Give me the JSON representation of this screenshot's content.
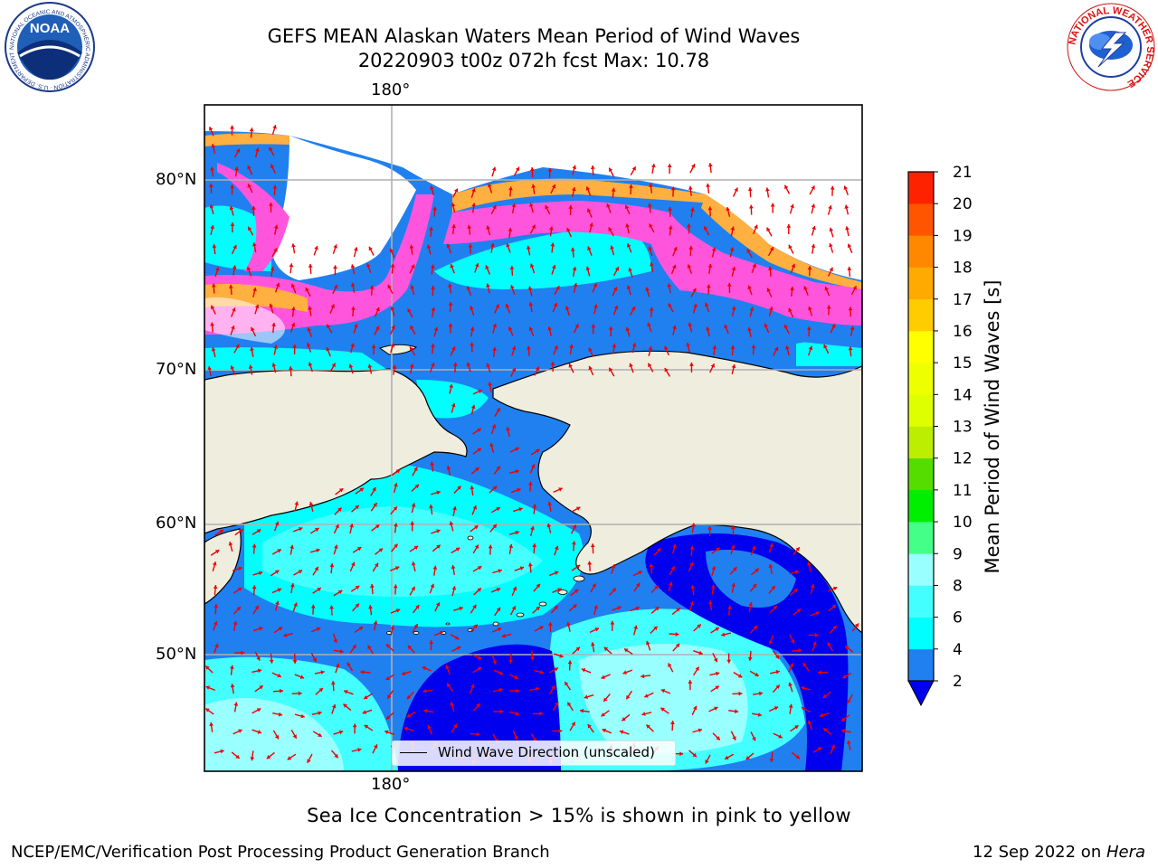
{
  "title": {
    "line1": "GEFS MEAN Alaskan Waters Mean Period of Wind Waves",
    "line2": "20220903 t00z 072h fcst   Max: 10.78"
  },
  "map": {
    "top_label": "180°",
    "bottom_label": "180°",
    "lat_labels": [
      "80°N",
      "70°N",
      "60°N",
      "50°N"
    ],
    "legend_text": "Wind Wave Direction (unscaled)",
    "colors": {
      "land": "#efedde",
      "ocean_2_4": "#2080f0",
      "ocean_deep": "#0000ee",
      "ocean_4_6": "#00ffff",
      "ocean_6_8": "#44ffff",
      "ocean_8_9": "#99ffff",
      "ice_pink": "#ff55dd",
      "ice_orange": "#ffb040",
      "arrow": "#ee0000",
      "grid": "#b0b0b0"
    }
  },
  "colorbar": {
    "label": "Mean Period of Wind Waves [s]",
    "ticks": [
      "2",
      "4",
      "6",
      "8",
      "9",
      "10",
      "11",
      "12",
      "13",
      "14",
      "15",
      "16",
      "17",
      "18",
      "19",
      "20",
      "21"
    ],
    "colors": [
      "#2080f0",
      "#00ffff",
      "#44ffff",
      "#99ffff",
      "#44ff88",
      "#00ee00",
      "#55dd00",
      "#bbee00",
      "#ddff00",
      "#eeff00",
      "#ffff00",
      "#ffcc00",
      "#ffaa00",
      "#ff8800",
      "#ff5500",
      "#ff2200"
    ],
    "extend_color": "#0000ee"
  },
  "caption": "Sea Ice Concentration > 15% is shown in pink to yellow",
  "footer": {
    "left": "NCEP/EMC/Verification Post Processing Product Generation Branch",
    "right_date": "12 Sep 2022 on ",
    "right_host": "Hera"
  },
  "logos": {
    "noaa": "NOAA",
    "noaa_ring": "NATIONAL OCEANIC AND ATMOSPHERIC ADMINISTRATION · U.S. DEPARTMENT OF COMMERCE",
    "nws_ring": "NATIONAL WEATHER SERVICE"
  }
}
